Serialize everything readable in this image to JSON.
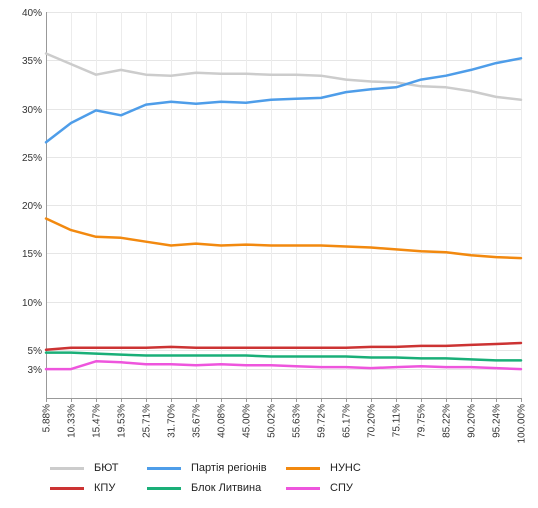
{
  "chart_data": {
    "type": "line",
    "x": [
      "5.88%",
      "10.33%",
      "15.47%",
      "19.53%",
      "25.71%",
      "31.70%",
      "35.67%",
      "40.08%",
      "45.00%",
      "50.02%",
      "55.63%",
      "59.72%",
      "65.17%",
      "70.20%",
      "75.11%",
      "79.75%",
      "85.22%",
      "90.20%",
      "95.24%",
      "100.00%"
    ],
    "y_ticks": [
      "40%",
      "35%",
      "30%",
      "25%",
      "20%",
      "15%",
      "10%",
      "5%",
      "3%"
    ],
    "y_tick_values": [
      40,
      35,
      30,
      25,
      20,
      15,
      10,
      5,
      3
    ],
    "ylim": [
      0,
      40
    ],
    "grid": true,
    "legend_position": "bottom",
    "series": [
      {
        "name": "БЮТ",
        "color": "#cccccc",
        "values": [
          35.7,
          34.6,
          33.5,
          34.0,
          33.5,
          33.4,
          33.7,
          33.6,
          33.6,
          33.5,
          33.5,
          33.4,
          33.0,
          32.8,
          32.7,
          32.3,
          32.2,
          31.8,
          31.2,
          30.9
        ]
      },
      {
        "name": "Партія регіонів",
        "color": "#4e9de9",
        "values": [
          26.5,
          28.5,
          29.8,
          29.3,
          30.4,
          30.7,
          30.5,
          30.7,
          30.6,
          30.9,
          31.0,
          31.1,
          31.7,
          32.0,
          32.2,
          33.0,
          33.4,
          34.0,
          34.7,
          35.2
        ]
      },
      {
        "name": "НУНС",
        "color": "#f2890f",
        "values": [
          18.6,
          17.4,
          16.7,
          16.6,
          16.2,
          15.8,
          16.0,
          15.8,
          15.9,
          15.8,
          15.8,
          15.8,
          15.7,
          15.6,
          15.4,
          15.2,
          15.1,
          14.8,
          14.6,
          14.5
        ]
      },
      {
        "name": "КПУ",
        "color": "#cc3333",
        "values": [
          5.0,
          5.2,
          5.2,
          5.2,
          5.2,
          5.3,
          5.2,
          5.2,
          5.2,
          5.2,
          5.2,
          5.2,
          5.2,
          5.3,
          5.3,
          5.4,
          5.4,
          5.5,
          5.6,
          5.7
        ]
      },
      {
        "name": "Блок Литвина",
        "color": "#1aaf78",
        "values": [
          4.7,
          4.7,
          4.6,
          4.5,
          4.4,
          4.4,
          4.4,
          4.4,
          4.4,
          4.3,
          4.3,
          4.3,
          4.3,
          4.2,
          4.2,
          4.1,
          4.1,
          4.0,
          3.9,
          3.9
        ]
      },
      {
        "name": "СПУ",
        "color": "#ee55dd",
        "values": [
          3.0,
          3.0,
          3.8,
          3.7,
          3.5,
          3.5,
          3.4,
          3.5,
          3.4,
          3.4,
          3.3,
          3.2,
          3.2,
          3.1,
          3.2,
          3.3,
          3.2,
          3.2,
          3.1,
          3.0
        ]
      }
    ]
  }
}
